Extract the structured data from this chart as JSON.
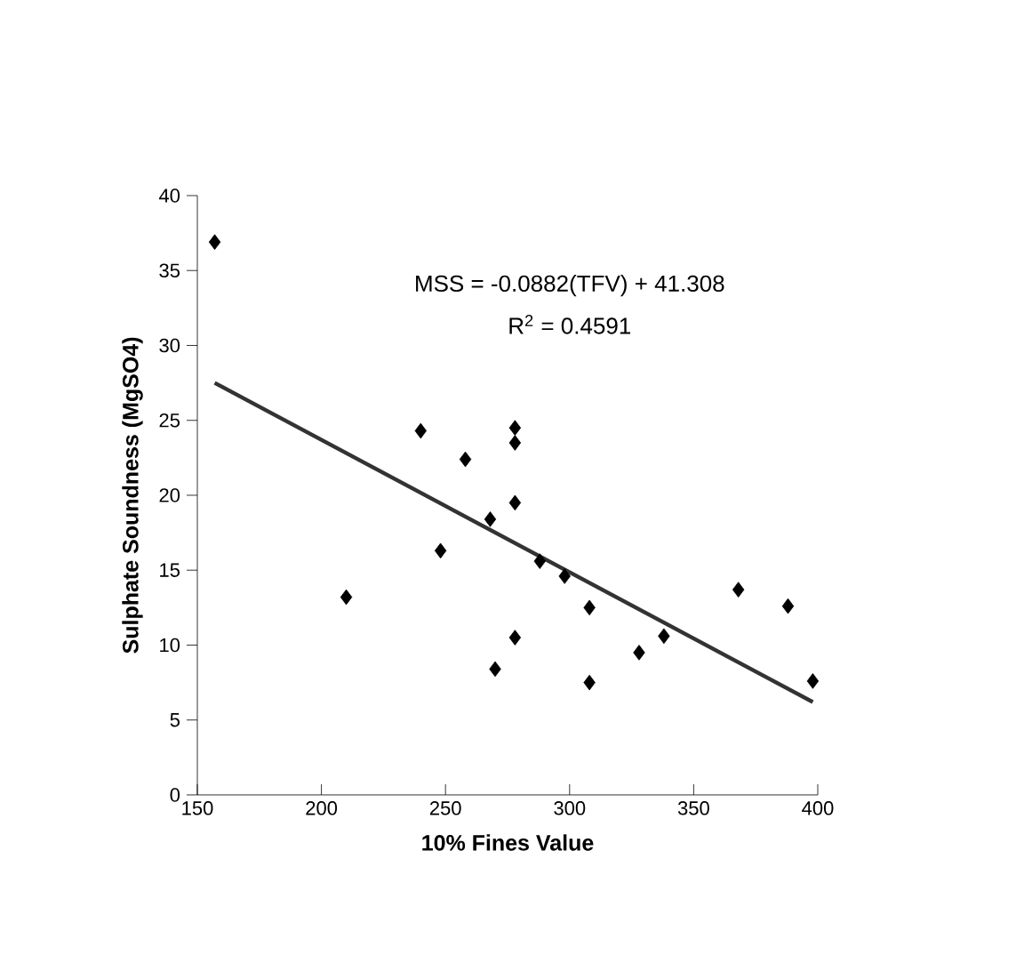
{
  "chart_data": {
    "type": "scatter",
    "xlabel": "10% Fines Value",
    "ylabel": "Sulphate Soundness (MgSO4)",
    "annotations": [
      "MSS = -0.0882(TFV) + 41.308",
      "R$^{2}$ = 0.4591"
    ],
    "xlim": [
      150,
      400
    ],
    "xticks": [
      150,
      200,
      250,
      300,
      350,
      400
    ],
    "ylim": [
      0,
      40
    ],
    "yticks": [
      0,
      5,
      10,
      15,
      20,
      25,
      30,
      35,
      40
    ],
    "grid": false,
    "series": [
      {
        "color": "#000000",
        "marker": "diamond",
        "x": [
          157,
          210,
          240,
          248,
          258,
          268,
          270,
          278,
          278,
          278,
          278,
          288,
          298,
          308,
          308,
          328,
          338,
          368,
          388,
          398
        ],
        "values": [
          36.9,
          13.2,
          24.3,
          16.3,
          22.4,
          18.4,
          8.4,
          24.5,
          23.5,
          19.5,
          10.5,
          15.6,
          14.6,
          12.5,
          7.5,
          9.5,
          10.6,
          13.7,
          12.6,
          7.6
        ]
      },
      {
        "type": "line",
        "color": "#333333",
        "marker": "none",
        "line_style": "solid",
        "x": [
          157,
          398
        ],
        "values": [
          27.5,
          6.2
        ]
      }
    ]
  }
}
